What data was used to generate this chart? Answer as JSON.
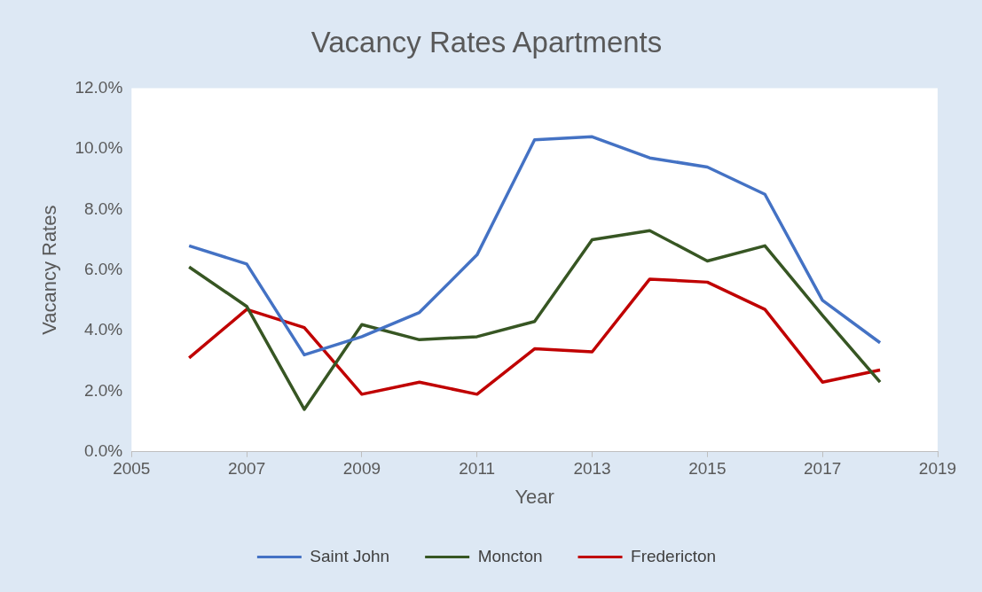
{
  "chart_data": {
    "type": "line",
    "title": "Vacancy Rates Apartments",
    "xlabel": "Year",
    "ylabel": "Vacancy Rates",
    "x": [
      2006,
      2007,
      2008,
      2009,
      2010,
      2011,
      2012,
      2013,
      2014,
      2015,
      2016,
      2017,
      2018
    ],
    "series": [
      {
        "name": "Saint John",
        "color": "#4472c4",
        "values": [
          6.8,
          6.2,
          3.2,
          3.8,
          4.6,
          6.5,
          10.3,
          10.4,
          9.7,
          9.4,
          8.5,
          5.0,
          3.6
        ]
      },
      {
        "name": "Moncton",
        "color": "#375623",
        "values": [
          6.1,
          4.8,
          1.4,
          4.2,
          3.7,
          3.8,
          4.3,
          7.0,
          7.3,
          6.3,
          6.8,
          4.5,
          2.3
        ]
      },
      {
        "name": "Fredericton",
        "color": "#c00000",
        "values": [
          3.1,
          4.7,
          4.1,
          1.9,
          2.3,
          1.9,
          3.4,
          3.3,
          5.7,
          5.6,
          4.7,
          2.3,
          2.7
        ]
      }
    ],
    "xlim": [
      2005,
      2019
    ],
    "xticks": [
      2005,
      2007,
      2009,
      2011,
      2013,
      2015,
      2017,
      2019
    ],
    "ylim": [
      0,
      12
    ],
    "yticks": [
      {
        "value": 0,
        "label": "0.0%"
      },
      {
        "value": 2,
        "label": "2.0%"
      },
      {
        "value": 4,
        "label": "4.0%"
      },
      {
        "value": 6,
        "label": "6.0%"
      },
      {
        "value": 8,
        "label": "8.0%"
      },
      {
        "value": 10,
        "label": "10.0%"
      },
      {
        "value": 12,
        "label": "12.0%"
      }
    ],
    "grid": false,
    "legend": "bottom",
    "marker": "none",
    "line_style": "solid"
  }
}
